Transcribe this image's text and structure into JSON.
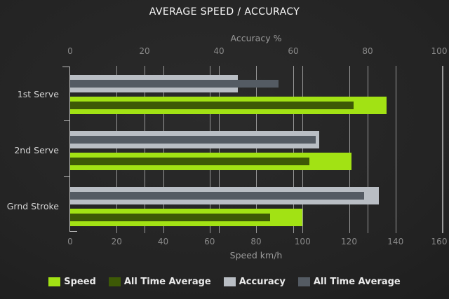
{
  "title": "AVERAGE SPEED / ACCURACY",
  "chart_data": {
    "type": "bar",
    "orientation": "horizontal",
    "title": "AVERAGE SPEED / ACCURACY",
    "grid": true,
    "legend_position": "bottom",
    "categories": [
      "1st Serve",
      "2nd Serve",
      "Grnd Stroke"
    ],
    "top_axis": {
      "label": "Accuracy %",
      "min": 0,
      "max": 100,
      "ticks": [
        0,
        20,
        40,
        60,
        80,
        100
      ]
    },
    "bottom_axis": {
      "label": "Speed km/h",
      "min": 0,
      "max": 160,
      "ticks": [
        0,
        20,
        40,
        60,
        80,
        100,
        120,
        140,
        160
      ]
    },
    "series": [
      {
        "key": "speed",
        "name": "Speed",
        "axis": "bottom",
        "color": "#a2e214",
        "values": [
          136,
          121,
          100
        ]
      },
      {
        "key": "speed-all-time-average",
        "name": "All Time Average",
        "axis": "bottom",
        "color": "#3d5906",
        "values": [
          122,
          103,
          86
        ]
      },
      {
        "key": "accuracy",
        "name": "Accuracy",
        "axis": "top",
        "color": "#b9bec4",
        "values": [
          45,
          67,
          83
        ]
      },
      {
        "key": "accuracy-all-time-average",
        "name": "All Time Average",
        "axis": "top",
        "color": "#545b63",
        "values": [
          56,
          66,
          79
        ]
      }
    ],
    "legend": [
      {
        "key": "speed",
        "label": "Speed",
        "color": "#a2e214"
      },
      {
        "key": "speed-all-time-average",
        "label": "All Time Average",
        "color": "#3d5906"
      },
      {
        "key": "accuracy",
        "label": "Accuracy",
        "color": "#b9bec4"
      },
      {
        "key": "accuracy-all-time-average",
        "label": "All Time Average",
        "color": "#545b63"
      }
    ]
  }
}
